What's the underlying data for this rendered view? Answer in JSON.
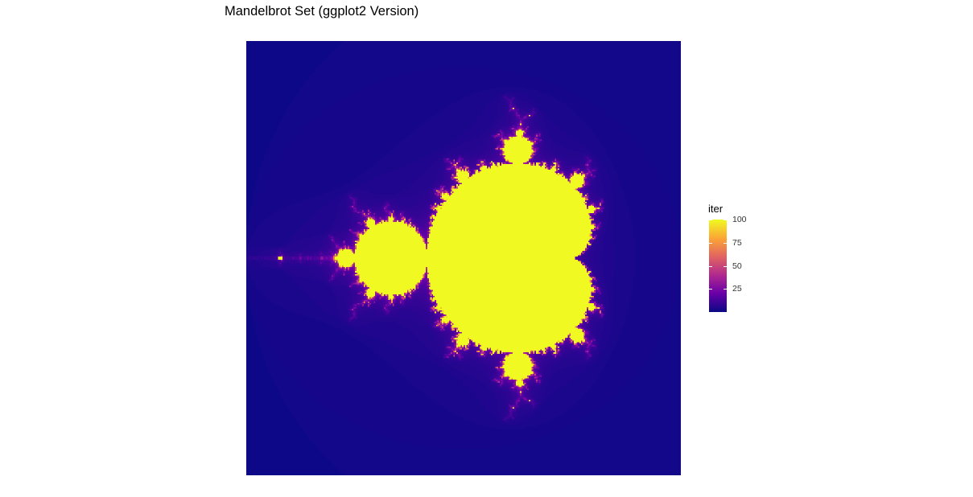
{
  "chart_data": {
    "type": "heatmap",
    "title": "Mandelbrot Set (ggplot2 Version)",
    "xlabel": "",
    "ylabel": "",
    "fill_variable": "iter",
    "xlim": [
      -2,
      1
    ],
    "ylim": [
      -1.5,
      1.5
    ],
    "resolution": 300,
    "max_iter": 100,
    "color_scale": {
      "palette": "plasma",
      "stops": [
        "#0d0887",
        "#6a00a8",
        "#b12a90",
        "#e16462",
        "#fca636",
        "#f0f921"
      ],
      "limits": [
        1,
        100
      ]
    },
    "legend": {
      "title": "iter",
      "position": "right",
      "breaks": [
        25,
        50,
        75,
        100
      ],
      "labels": [
        "25",
        "50",
        "75",
        "100"
      ]
    },
    "grid": false,
    "axes": false
  }
}
